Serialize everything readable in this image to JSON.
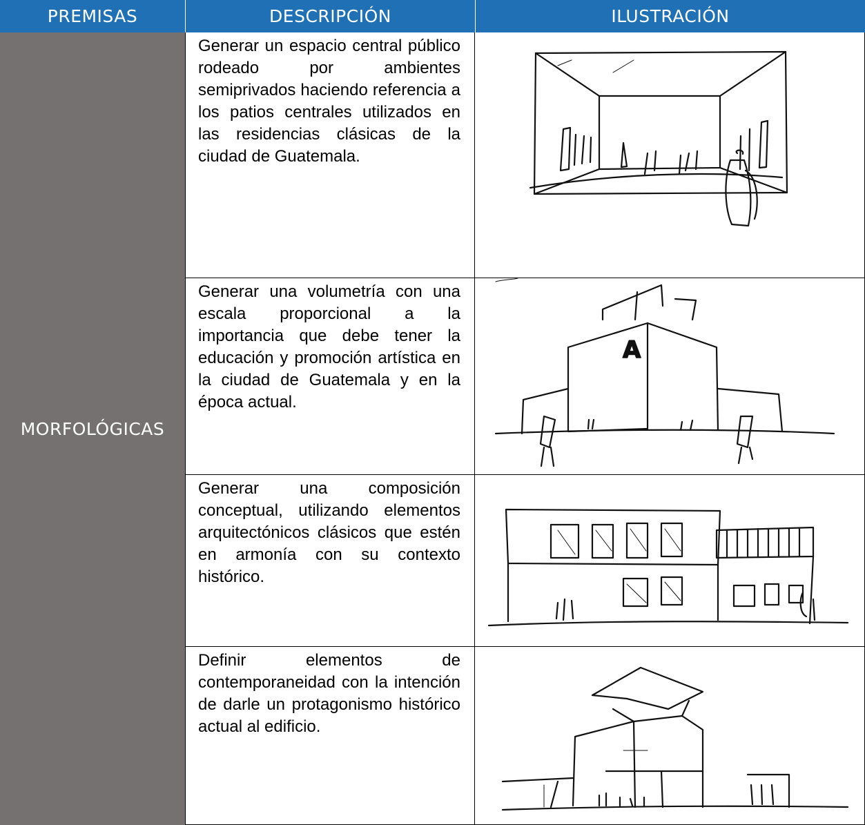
{
  "table": {
    "header": [
      "PREMISAS",
      "DESCRIPCIÓN",
      "ILUSTRACIÓN"
    ],
    "category": "MORFOLÓGICAS",
    "rows": [
      {
        "description": "Generar un espacio central público rodeado por ambientes semiprivados haciendo referencia a los patios centrales utilizados en las residencias clásicas de la ciudad de Guatemala."
      },
      {
        "description": "Generar una volumetría con una escala proporcional a la importancia que debe tener la educación y promoción artística en la ciudad de Guatemala y en la época actual.",
        "sketch_sign": "A"
      },
      {
        "description": "Generar una composición conceptual, utilizando elementos arquitectónicos clásicos que estén en armonía con su contexto histórico."
      },
      {
        "description": "Definir elementos de contemporaneidad con la intención de darle un protagonismo histórico actual al edificio."
      }
    ]
  }
}
